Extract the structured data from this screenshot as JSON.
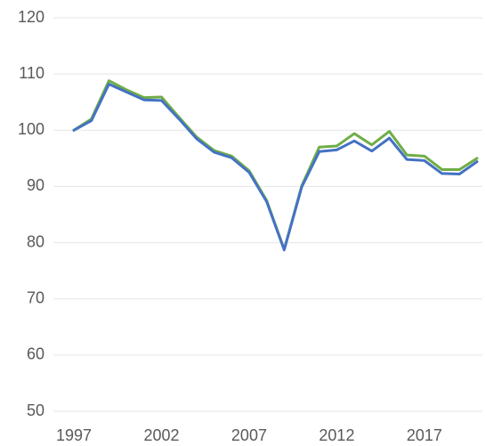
{
  "chart_data": {
    "type": "line",
    "x": [
      1997,
      1998,
      1999,
      2000,
      2001,
      2002,
      2003,
      2004,
      2005,
      2006,
      2007,
      2008,
      2009,
      2010,
      2011,
      2012,
      2013,
      2014,
      2015,
      2016,
      2017,
      2018,
      2019,
      2020
    ],
    "series": [
      {
        "color": "#70ad47",
        "values": [
          100,
          102,
          108.8,
          107.2,
          105.8,
          105.9,
          102.3,
          98.8,
          96.4,
          95.4,
          92.8,
          87.5,
          78.8,
          90.1,
          97.0,
          97.2,
          99.4,
          97.4,
          99.8,
          95.6,
          95.4,
          93,
          93,
          95
        ]
      },
      {
        "color": "#4472c4",
        "values": [
          100,
          101.7,
          108.2,
          106.8,
          105.4,
          105.3,
          102,
          98.5,
          96.1,
          95.1,
          92.5,
          87.3,
          78.7,
          89.9,
          96.2,
          96.5,
          98.1,
          96.3,
          98.6,
          94.8,
          94.6,
          92.3,
          92.2,
          94.4
        ]
      }
    ],
    "xlim": [
      1997,
      2020
    ],
    "xticks": [
      1997,
      2002,
      2007,
      2012,
      2017
    ],
    "ylim": [
      50,
      120
    ],
    "yticks": [
      50,
      60,
      70,
      80,
      90,
      100,
      110,
      120
    ],
    "grid": true
  }
}
